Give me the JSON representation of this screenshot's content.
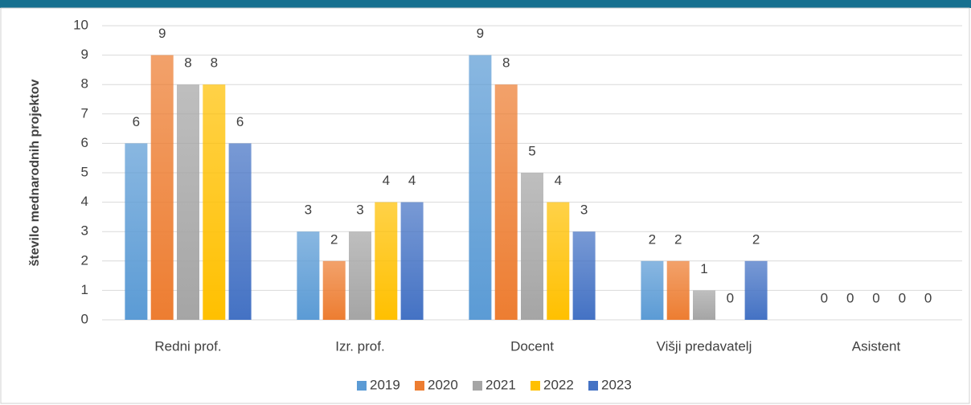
{
  "chart_data": {
    "type": "bar",
    "ylabel": "število mednarodnih projektov",
    "categories": [
      "Redni prof.",
      "Izr. prof.",
      "Docent",
      "Višji predavatelj",
      "Asistent"
    ],
    "series": [
      {
        "name": "2019",
        "color": "#5b9bd5",
        "values": [
          6,
          3,
          9,
          2,
          0
        ]
      },
      {
        "name": "2020",
        "color": "#ed7d31",
        "values": [
          9,
          2,
          8,
          2,
          0
        ]
      },
      {
        "name": "2021",
        "color": "#a5a5a5",
        "values": [
          8,
          3,
          5,
          1,
          0
        ]
      },
      {
        "name": "2022",
        "color": "#ffc000",
        "values": [
          8,
          4,
          4,
          0,
          0
        ]
      },
      {
        "name": "2023",
        "color": "#4472c4",
        "values": [
          6,
          4,
          3,
          2,
          0
        ]
      }
    ],
    "ylim": [
      0,
      10
    ],
    "yticks": [
      0,
      1,
      2,
      3,
      4,
      5,
      6,
      7,
      8,
      9,
      10
    ],
    "grid": true,
    "legend": "bottom"
  }
}
